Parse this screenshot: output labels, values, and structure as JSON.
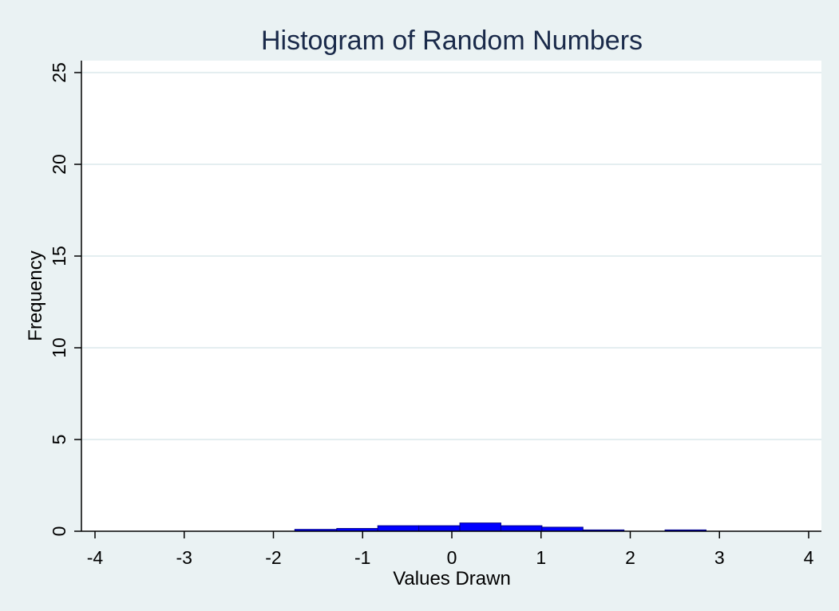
{
  "chart_data": {
    "type": "bar",
    "title": "Histogram of Random Numbers",
    "xlabel": "Values Drawn",
    "ylabel": "Frequency",
    "xlim": [
      -4,
      4
    ],
    "ylim": [
      0,
      25
    ],
    "xticks": [
      -4,
      -3,
      -2,
      -1,
      0,
      1,
      2,
      3,
      4
    ],
    "yticks": [
      0,
      5,
      10,
      15,
      20,
      25
    ],
    "grid": "horizontal",
    "bins": [
      {
        "x0": -1.76,
        "x1": -1.29,
        "value": 0.1
      },
      {
        "x0": -1.29,
        "x1": -0.83,
        "value": 0.15
      },
      {
        "x0": -0.83,
        "x1": -0.37,
        "value": 0.3
      },
      {
        "x0": -0.37,
        "x1": 0.09,
        "value": 0.3
      },
      {
        "x0": 0.09,
        "x1": 0.55,
        "value": 0.45
      },
      {
        "x0": 0.55,
        "x1": 1.01,
        "value": 0.3
      },
      {
        "x0": 1.01,
        "x1": 1.47,
        "value": 0.22
      },
      {
        "x0": 1.47,
        "x1": 1.93,
        "value": 0.07
      },
      {
        "x0": 1.93,
        "x1": 2.39,
        "value": 0
      },
      {
        "x0": 2.39,
        "x1": 2.85,
        "value": 0.07
      }
    ],
    "colors": {
      "bar": "#0000ff",
      "bar_outline": "#00008b",
      "title": "#1a2a4a",
      "grid": "#e4eef0",
      "axis": "#000000",
      "plot_bg": "#ffffff"
    }
  }
}
